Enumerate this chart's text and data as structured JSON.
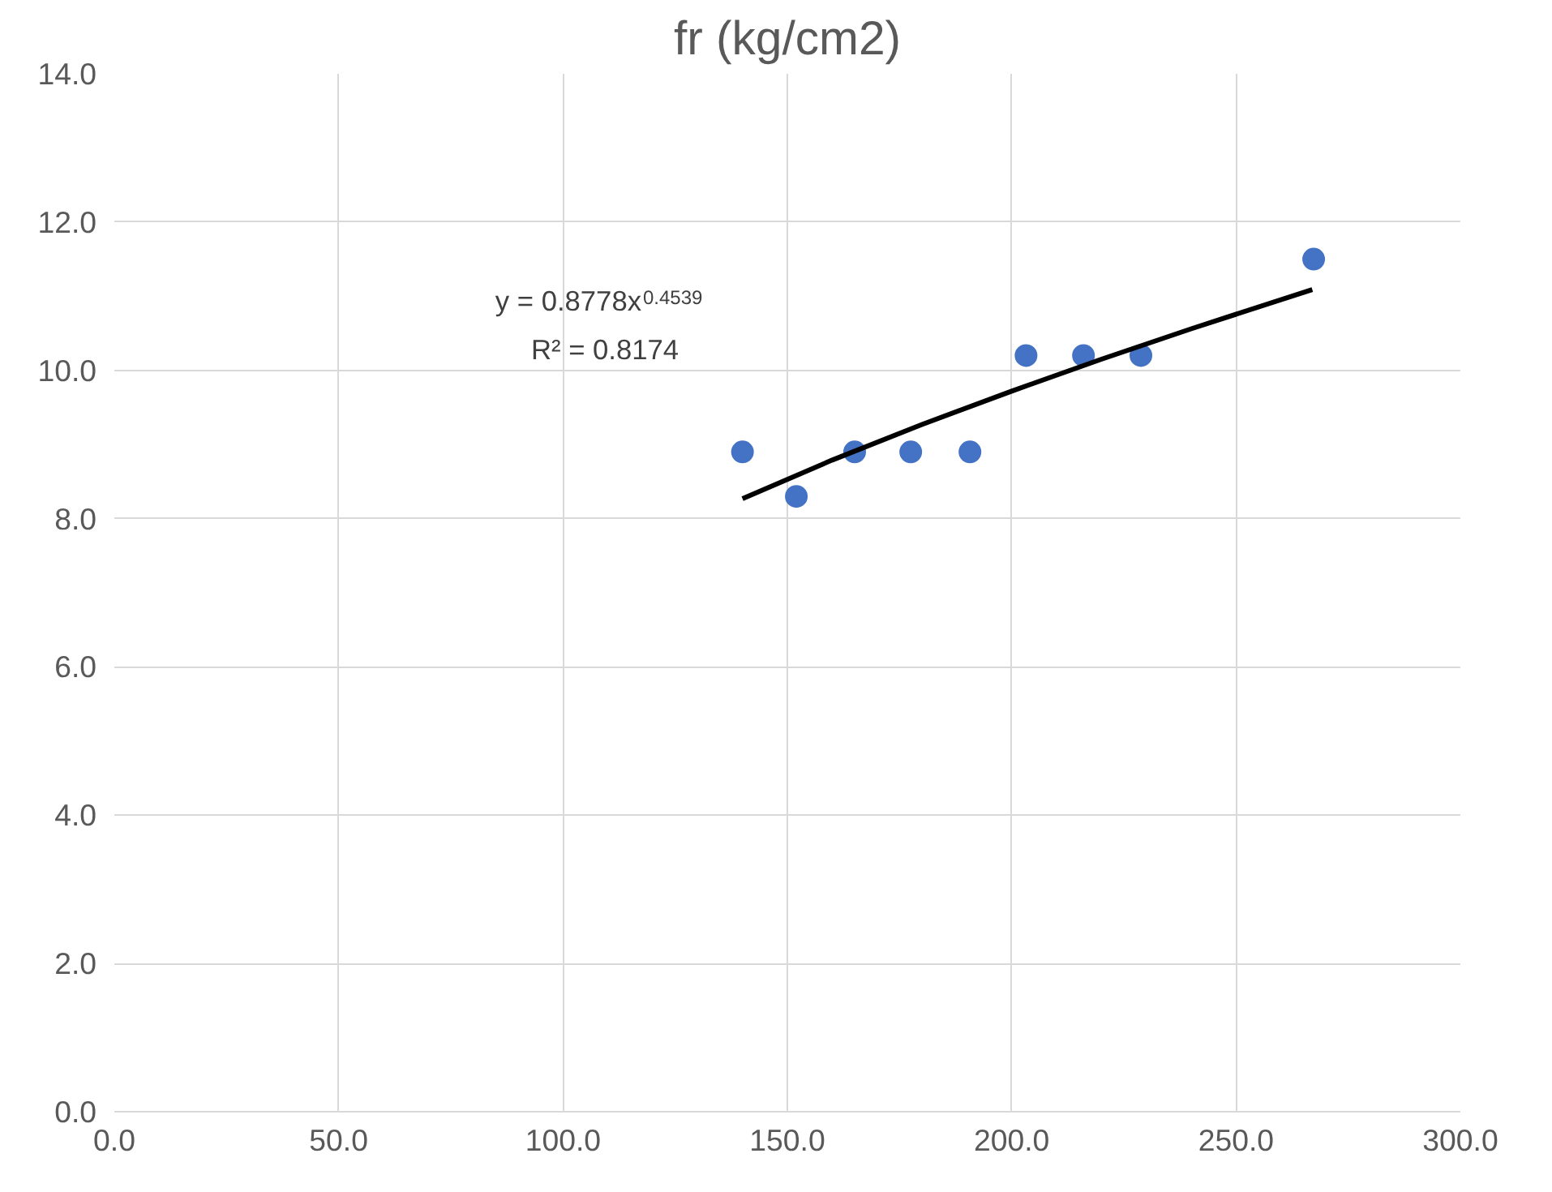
{
  "chart_data": {
    "type": "scatter",
    "title": "fr (kg/cm2)",
    "xlim": [
      0,
      300
    ],
    "ylim": [
      0,
      14
    ],
    "xticks": [
      {
        "value": 0,
        "label": "0.0"
      },
      {
        "value": 50,
        "label": "50.0"
      },
      {
        "value": 100,
        "label": "100.0"
      },
      {
        "value": 150,
        "label": "150.0"
      },
      {
        "value": 200,
        "label": "200.0"
      },
      {
        "value": 250,
        "label": "250.0"
      },
      {
        "value": 300,
        "label": "300.0"
      }
    ],
    "yticks": [
      {
        "value": 0,
        "label": "0.0"
      },
      {
        "value": 2,
        "label": "2.0"
      },
      {
        "value": 4,
        "label": "4.0"
      },
      {
        "value": 6,
        "label": "6.0"
      },
      {
        "value": 8,
        "label": "8.0"
      },
      {
        "value": 10,
        "label": "10.0"
      },
      {
        "value": 12,
        "label": "12.0"
      },
      {
        "value": 14,
        "label": "14.0"
      }
    ],
    "grid": true,
    "series": [
      {
        "marker": "circle",
        "color": "#4472c4",
        "x": [
          140,
          152,
          165,
          177.5,
          190.7,
          203.2,
          216,
          228.8,
          267.3
        ],
        "values": [
          8.9,
          8.3,
          8.9,
          8.9,
          8.9,
          10.2,
          10.2,
          10.2,
          11.5
        ]
      },
      {
        "type": "line",
        "color": "#000000",
        "line_style": "solid",
        "x": [
          140,
          160,
          180,
          200,
          220,
          240,
          267
        ],
        "values": [
          8.27,
          8.79,
          9.27,
          9.72,
          10.15,
          10.56,
          11.09
        ]
      }
    ],
    "annotations": [
      "y = 0.8778x$^{0.4539}$",
      "R² = 0.8174"
    ]
  }
}
